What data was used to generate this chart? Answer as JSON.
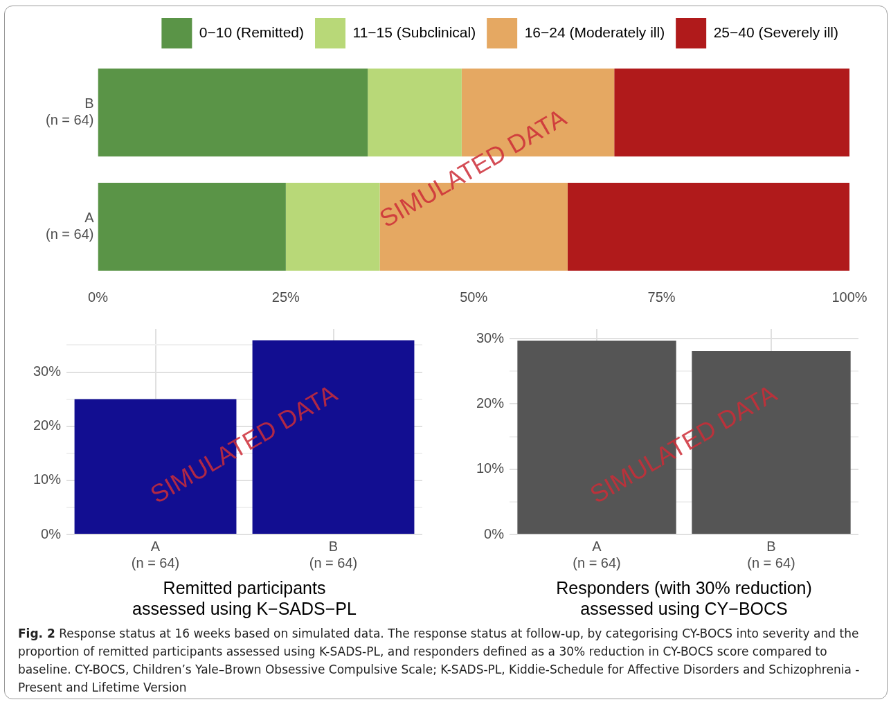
{
  "chart_data": [
    {
      "type": "bar",
      "orientation": "horizontal",
      "stacked": true,
      "legend": "top",
      "grid": false,
      "categories": [
        "B\n(n = 64)",
        "A\n(n = 64)"
      ],
      "series": [
        {
          "name": "0−10 (Remitted)",
          "color": "#5a9447",
          "values": [
            35.9,
            25
          ]
        },
        {
          "name": "11−15 (Subclinical)",
          "color": "#b8d878",
          "values": [
            12.5,
            12.5
          ]
        },
        {
          "name": "16−24 (Moderately ill)",
          "color": "#e5a862",
          "values": [
            20.3,
            25
          ]
        },
        {
          "name": "25−40 (Severely ill)",
          "color": "#b01a1b",
          "values": [
            31.3,
            37.5
          ]
        }
      ],
      "xlim": [
        0,
        100
      ],
      "xticks": [
        {
          "value": 0,
          "label": "0%"
        },
        {
          "value": 25,
          "label": "25%"
        },
        {
          "value": 50,
          "label": "50%"
        },
        {
          "value": 75,
          "label": "75%"
        },
        {
          "value": 100,
          "label": "100%"
        }
      ],
      "annotations": [
        "SIMULATED DATA"
      ]
    },
    {
      "type": "bar",
      "grid": true,
      "categories": [
        "A\n(n = 64)",
        "B\n(n = 64)"
      ],
      "color": "#120e91",
      "values": [
        25,
        35.9
      ],
      "xlabel": "Remitted participants\nassessed using K−SADS−PL",
      "ylim": [
        0,
        38
      ],
      "yticks": [
        {
          "value": 0,
          "label": "0%"
        },
        {
          "value": 5,
          "label": null
        },
        {
          "value": 10,
          "label": "10%"
        },
        {
          "value": 15,
          "label": null
        },
        {
          "value": 20,
          "label": "20%"
        },
        {
          "value": 25,
          "label": null
        },
        {
          "value": 30,
          "label": "30%"
        },
        {
          "value": 35,
          "label": null
        }
      ],
      "annotations": [
        "SIMULATED DATA"
      ]
    },
    {
      "type": "bar",
      "grid": true,
      "categories": [
        "A\n(n = 64)",
        "B\n(n = 64)"
      ],
      "color": "#555555",
      "values": [
        29.7,
        28.1
      ],
      "xlabel": "Responders (with 30% reduction)\nassessed using CY−BOCS",
      "ylim": [
        0,
        31.5
      ],
      "yticks": [
        {
          "value": 0,
          "label": "0%"
        },
        {
          "value": 5,
          "label": null
        },
        {
          "value": 10,
          "label": "10%"
        },
        {
          "value": 15,
          "label": null
        },
        {
          "value": 20,
          "label": "20%"
        },
        {
          "value": 25,
          "label": null
        },
        {
          "value": 30,
          "label": "30%"
        }
      ],
      "annotations": [
        "SIMULATED DATA",
        "Fig. 2  Response status at 16 weeks based on simulated data. The response status at follow-up, by categorising CY-BOCS into severity and the proportion of remitted participants assessed using K-SADS-PL, and responders defined as a 30% reduction in CY-BOCS score compared to baseline. CY-BOCS, Children’s Yale–Brown Obsessive Compulsive Scale; K-SADS-PL, Kiddie-Schedule for Affective Disorders and Schizophrenia - Present and Lifetime Version"
      ]
    }
  ]
}
